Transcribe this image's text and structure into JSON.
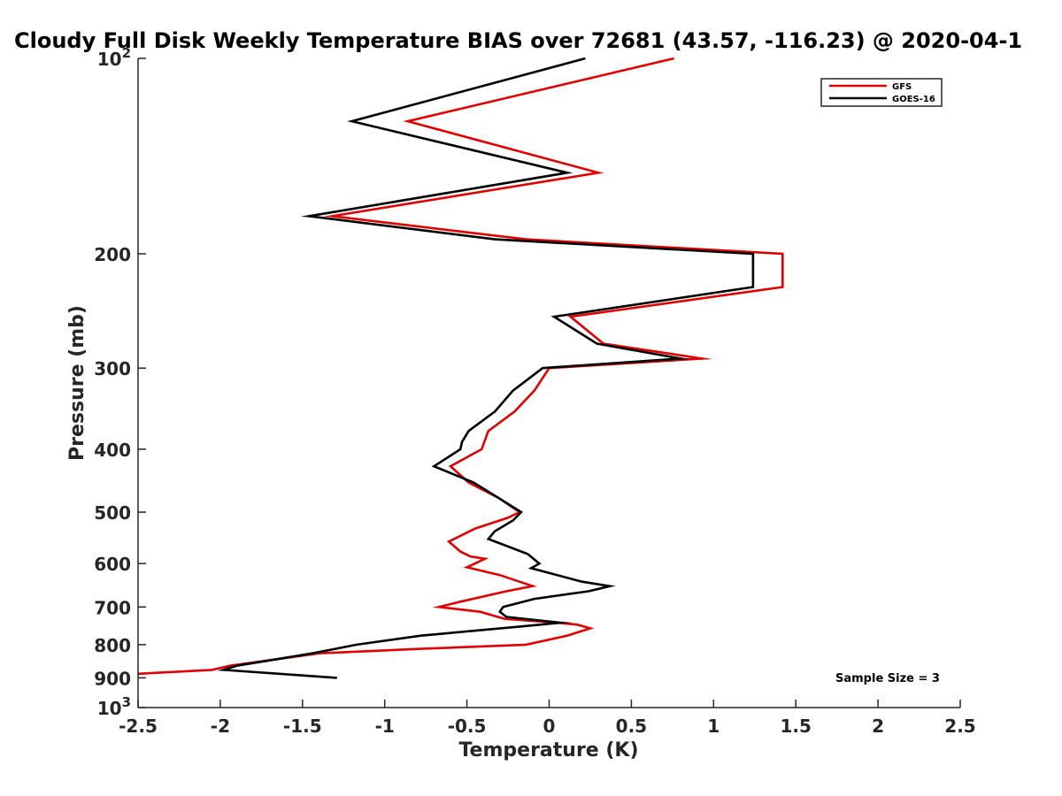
{
  "chart_data": {
    "type": "line",
    "title": "Cloudy Full Disk Weekly Temperature BIAS over 72681 (43.57, -116.23) @ 2020-04-1",
    "xlabel": "Temperature (K)",
    "ylabel": "Pressure (mb)",
    "xlim": [
      -2.5,
      2.5
    ],
    "ylim": [
      100,
      1000
    ],
    "y_scale": "log",
    "y_reversed": true,
    "x_ticks": [
      -2.5,
      -2,
      -1.5,
      -1,
      -0.5,
      0,
      0.5,
      1,
      1.5,
      2,
      2.5
    ],
    "x_tick_labels": [
      "-2.5",
      "-2",
      "-1.5",
      "-1",
      "-0.5",
      "0",
      "0.5",
      "1",
      "1.5",
      "2",
      "2.5"
    ],
    "y_ticks": [
      100,
      200,
      300,
      400,
      500,
      600,
      700,
      800,
      900,
      1000
    ],
    "y_tick_labels": [
      {
        "base": "10",
        "sup": "2"
      },
      {
        "base": "200"
      },
      {
        "base": "300"
      },
      {
        "base": "400"
      },
      {
        "base": "500"
      },
      {
        "base": "600"
      },
      {
        "base": "700"
      },
      {
        "base": "800"
      },
      {
        "base": "900"
      },
      {
        "base": "10",
        "sup": "3"
      }
    ],
    "grid": false,
    "legend_position": "top-right",
    "annotation": "Sample Size = 3",
    "series": [
      {
        "name": "GFS",
        "color": "#e00000",
        "points": [
          [
            0.76,
            100
          ],
          [
            -0.86,
            125
          ],
          [
            0.3,
            150
          ],
          [
            -1.32,
            175
          ],
          [
            -0.14,
            190
          ],
          [
            1.42,
            200
          ],
          [
            1.42,
            225
          ],
          [
            0.13,
            250
          ],
          [
            0.33,
            275
          ],
          [
            0.93,
            290
          ],
          [
            0.0,
            300
          ],
          [
            -0.09,
            325
          ],
          [
            -0.21,
            350
          ],
          [
            -0.37,
            375
          ],
          [
            -0.41,
            400
          ],
          [
            -0.6,
            425
          ],
          [
            -0.49,
            450
          ],
          [
            -0.31,
            475
          ],
          [
            -0.18,
            500
          ],
          [
            -0.25,
            510
          ],
          [
            -0.45,
            530
          ],
          [
            -0.61,
            555
          ],
          [
            -0.54,
            575
          ],
          [
            -0.48,
            585
          ],
          [
            -0.39,
            590
          ],
          [
            -0.5,
            608
          ],
          [
            -0.3,
            625
          ],
          [
            -0.1,
            650
          ],
          [
            -0.26,
            662
          ],
          [
            -0.54,
            687
          ],
          [
            -0.67,
            700
          ],
          [
            -0.42,
            712
          ],
          [
            -0.27,
            730
          ],
          [
            0.04,
            740
          ],
          [
            0.17,
            745
          ],
          [
            0.25,
            755
          ],
          [
            0.11,
            775
          ],
          [
            -0.14,
            800
          ],
          [
            -0.78,
            812
          ],
          [
            -1.4,
            825
          ],
          [
            -1.94,
            862
          ],
          [
            -2.05,
            875
          ],
          [
            -2.5,
            887
          ]
        ]
      },
      {
        "name": "GOES-16",
        "color": "#000000",
        "points": [
          [
            0.22,
            100
          ],
          [
            -1.2,
            125
          ],
          [
            0.11,
            150
          ],
          [
            -1.46,
            175
          ],
          [
            -0.33,
            190
          ],
          [
            1.24,
            200
          ],
          [
            1.24,
            225
          ],
          [
            0.03,
            250
          ],
          [
            0.29,
            275
          ],
          [
            0.8,
            290
          ],
          [
            -0.04,
            300
          ],
          [
            -0.22,
            325
          ],
          [
            -0.33,
            350
          ],
          [
            -0.49,
            375
          ],
          [
            -0.53,
            390
          ],
          [
            -0.54,
            400
          ],
          [
            -0.7,
            425
          ],
          [
            -0.46,
            450
          ],
          [
            -0.31,
            475
          ],
          [
            -0.17,
            500
          ],
          [
            -0.22,
            515
          ],
          [
            -0.33,
            535
          ],
          [
            -0.37,
            550
          ],
          [
            -0.13,
            580
          ],
          [
            -0.06,
            600
          ],
          [
            -0.11,
            610
          ],
          [
            0.2,
            640
          ],
          [
            0.37,
            650
          ],
          [
            0.24,
            662
          ],
          [
            -0.09,
            680
          ],
          [
            -0.28,
            700
          ],
          [
            -0.3,
            712
          ],
          [
            -0.26,
            725
          ],
          [
            0.07,
            740
          ],
          [
            -0.17,
            750
          ],
          [
            -0.78,
            775
          ],
          [
            -1.17,
            800
          ],
          [
            -1.44,
            825
          ],
          [
            -1.75,
            850
          ],
          [
            -1.9,
            862
          ],
          [
            -1.98,
            875
          ],
          [
            -1.29,
            900
          ]
        ]
      }
    ]
  }
}
